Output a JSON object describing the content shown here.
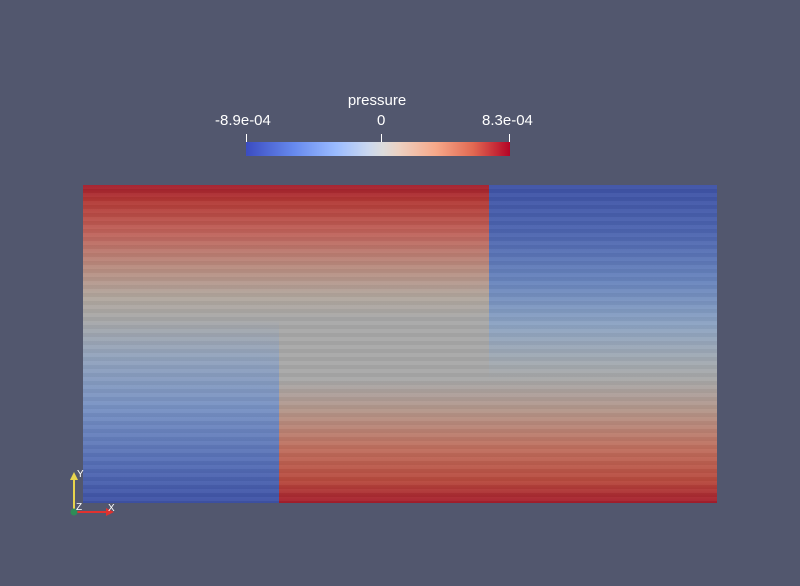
{
  "scalar_bar": {
    "title": "pressure",
    "min_label": "-8.9e-04",
    "zero_label": "0",
    "max_label": "8.3e-04",
    "colormap": {
      "low": "#3b4cc0",
      "mid": "#dddcdc",
      "high": "#b40426"
    }
  },
  "axes": {
    "x_label": "X",
    "y_label": "Y",
    "z_label": "Z",
    "x_color": "#e0322f",
    "y_color": "#e8d44d",
    "z_color": "#2e8b57"
  },
  "background_color": "#52576e"
}
